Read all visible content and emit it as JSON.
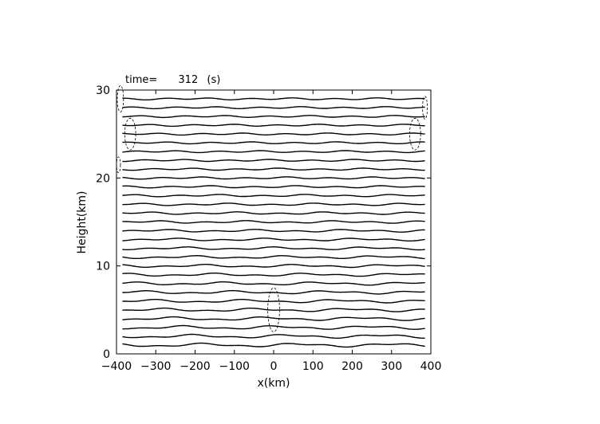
{
  "chart_data": {
    "type": "line",
    "title_prefix": "time=",
    "title_value": "312",
    "title_unit": "(s)",
    "xlabel": "x(km)",
    "ylabel": "Height(km)",
    "xlim": [
      -400,
      400
    ],
    "ylim": [
      0,
      30
    ],
    "x_ticks": [
      -400,
      -300,
      -200,
      -100,
      0,
      100,
      200,
      300,
      400
    ],
    "y_ticks": [
      0,
      10,
      20,
      30
    ],
    "grid": false,
    "series": [
      {
        "style": "solid",
        "levels": [
          1,
          2,
          3,
          4,
          5,
          6,
          7,
          8,
          9,
          10,
          11,
          12,
          13,
          14,
          15,
          16,
          17,
          18,
          19,
          20,
          21,
          22,
          23,
          24,
          25,
          26,
          27,
          28,
          29
        ]
      },
      {
        "style": "dashed",
        "regions": [
          {
            "cx": 0,
            "cy": 5,
            "rx": 15,
            "ry": 2.5
          },
          {
            "cx": -365,
            "cy": 25,
            "rx": 14,
            "ry": 1.8
          },
          {
            "cx": 360,
            "cy": 25,
            "rx": 14,
            "ry": 1.8
          },
          {
            "cx": -390,
            "cy": 29,
            "rx": 8,
            "ry": 1.5
          },
          {
            "cx": 385,
            "cy": 28,
            "rx": 6,
            "ry": 1.3
          },
          {
            "cx": -395,
            "cy": 21.5,
            "rx": 5,
            "ry": 0.9
          }
        ]
      }
    ]
  }
}
